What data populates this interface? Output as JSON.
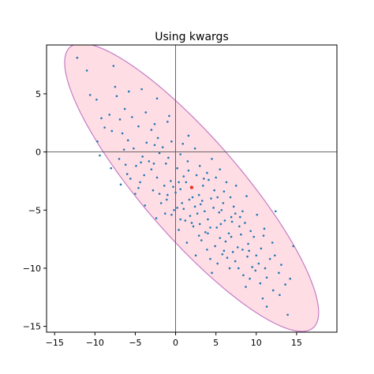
{
  "chart_data": {
    "type": "scatter",
    "title": "Using kwargs",
    "xlabel": "",
    "ylabel": "",
    "xlim": [
      -16,
      20
    ],
    "ylim": [
      -15.5,
      9.2
    ],
    "x_ticks": [
      -15,
      -10,
      -5,
      0,
      5,
      10,
      15
    ],
    "y_ticks": [
      5,
      0,
      -5,
      -10,
      -15
    ],
    "x_tick_labels": [
      "−15",
      "−10",
      "−5",
      "0",
      "5",
      "10",
      "15"
    ],
    "y_tick_labels": [
      "5",
      "0",
      "−5",
      "−10",
      "−15"
    ],
    "grid": false,
    "reference_lines": {
      "x": 0,
      "y": 0
    },
    "ellipse": {
      "center": [
        1.99,
        -3.05
      ],
      "semi_major": 19.4,
      "semi_minor": 5.0,
      "angle_deg": -37.2,
      "facecolor": "#ffdde4",
      "edgecolor": "#c57cc5"
    },
    "center_marker": {
      "x": 1.99,
      "y": -3.05,
      "color": "#e8352a"
    },
    "series": [
      {
        "points_color": "#1f77b4",
        "points": [
          [
            -12.2,
            8.1
          ],
          [
            -11.0,
            7.0
          ],
          [
            -7.7,
            7.4
          ],
          [
            -10.6,
            4.9
          ],
          [
            -9.8,
            4.5
          ],
          [
            -7.5,
            5.6
          ],
          [
            -7.3,
            4.8
          ],
          [
            -5.8,
            5.2
          ],
          [
            -4.2,
            5.4
          ],
          [
            -2.3,
            4.6
          ],
          [
            -6.3,
            3.7
          ],
          [
            -8.2,
            3.2
          ],
          [
            -3.7,
            3.4
          ],
          [
            -0.8,
            3.1
          ],
          [
            -8.8,
            2.1
          ],
          [
            -6.6,
            1.6
          ],
          [
            -4.6,
            2.2
          ],
          [
            -2.6,
            2.4
          ],
          [
            -1.0,
            2.6
          ],
          [
            -9.7,
            0.9
          ],
          [
            -5.9,
            1.0
          ],
          [
            -5.2,
            0.3
          ],
          [
            -3.6,
            0.8
          ],
          [
            -2.2,
            1.2
          ],
          [
            -0.5,
            0.9
          ],
          [
            -9.4,
            -0.3
          ],
          [
            -7.0,
            -0.6
          ],
          [
            -4.1,
            -0.4
          ],
          [
            -2.0,
            -0.1
          ],
          [
            0.6,
            -0.2
          ],
          [
            1.6,
            1.4
          ],
          [
            2.4,
            0.3
          ],
          [
            -8.0,
            -1.4
          ],
          [
            -6.0,
            -1.9
          ],
          [
            -3.0,
            -1.5
          ],
          [
            -1.2,
            -1.0
          ],
          [
            0.2,
            -1.4
          ],
          [
            1.5,
            -0.8
          ],
          [
            3.0,
            -1.2
          ],
          [
            4.5,
            -0.6
          ],
          [
            -6.8,
            -2.8
          ],
          [
            -4.4,
            -2.6
          ],
          [
            -2.3,
            -2.2
          ],
          [
            -0.6,
            -2.5
          ],
          [
            1.0,
            -2.1
          ],
          [
            2.6,
            -2.0
          ],
          [
            3.9,
            -1.8
          ],
          [
            5.5,
            -1.5
          ],
          [
            -5.0,
            -3.6
          ],
          [
            -2.8,
            -3.3
          ],
          [
            -1.0,
            -3.7
          ],
          [
            0.6,
            -3.2
          ],
          [
            2.0,
            -3.05
          ],
          [
            3.4,
            -2.9
          ],
          [
            4.8,
            -3.3
          ],
          [
            6.3,
            -2.6
          ],
          [
            7.5,
            -2.9
          ],
          [
            -3.8,
            -4.6
          ],
          [
            -1.8,
            -4.4
          ],
          [
            0.2,
            -4.8
          ],
          [
            1.7,
            -4.1
          ],
          [
            3.1,
            -4.5
          ],
          [
            4.4,
            -4.0
          ],
          [
            5.9,
            -4.4
          ],
          [
            7.2,
            -4.7
          ],
          [
            8.8,
            -3.8
          ],
          [
            -2.4,
            -5.7
          ],
          [
            -0.5,
            -5.4
          ],
          [
            1.2,
            -5.9
          ],
          [
            2.7,
            -5.3
          ],
          [
            4.0,
            -5.8
          ],
          [
            5.4,
            -5.2
          ],
          [
            6.9,
            -5.6
          ],
          [
            8.3,
            -5.1
          ],
          [
            10.1,
            -5.4
          ],
          [
            12.4,
            -5.1
          ],
          [
            0.4,
            -6.7
          ],
          [
            2.2,
            -6.4
          ],
          [
            3.7,
            -6.9
          ],
          [
            5.1,
            -6.5
          ],
          [
            6.6,
            -7.0
          ],
          [
            7.9,
            -6.4
          ],
          [
            9.3,
            -6.8
          ],
          [
            11.0,
            -6.6
          ],
          [
            1.4,
            -7.8
          ],
          [
            3.2,
            -7.6
          ],
          [
            4.9,
            -8.1
          ],
          [
            6.2,
            -7.7
          ],
          [
            7.7,
            -8.2
          ],
          [
            9.0,
            -7.9
          ],
          [
            10.6,
            -8.3
          ],
          [
            12.0,
            -7.8
          ],
          [
            2.5,
            -8.9
          ],
          [
            4.3,
            -9.2
          ],
          [
            5.8,
            -8.8
          ],
          [
            7.4,
            -9.4
          ],
          [
            8.9,
            -9.0
          ],
          [
            10.3,
            -9.6
          ],
          [
            11.7,
            -9.2
          ],
          [
            13.1,
            -9.7
          ],
          [
            14.6,
            -8.1
          ],
          [
            4.5,
            -10.4
          ],
          [
            6.7,
            -10.0
          ],
          [
            8.4,
            -10.6
          ],
          [
            9.9,
            -10.2
          ],
          [
            11.3,
            -10.8
          ],
          [
            12.8,
            -10.4
          ],
          [
            14.2,
            -10.9
          ],
          [
            8.7,
            -11.6
          ],
          [
            10.5,
            -11.3
          ],
          [
            12.1,
            -11.9
          ],
          [
            13.6,
            -11.4
          ],
          [
            10.8,
            -12.6
          ],
          [
            12.9,
            -12.3
          ],
          [
            11.3,
            -13.3
          ],
          [
            13.9,
            -14.0
          ],
          [
            -9.2,
            2.9
          ],
          [
            -7.9,
            1.8
          ],
          [
            -6.4,
            0.2
          ],
          [
            -4.9,
            -1.2
          ],
          [
            -3.3,
            -0.8
          ],
          [
            -1.6,
            0.4
          ],
          [
            0.9,
            0.7
          ],
          [
            -5.6,
            -2.3
          ],
          [
            -3.9,
            -2.0
          ],
          [
            -1.4,
            -2.9
          ],
          [
            0.0,
            -3.5
          ],
          [
            1.3,
            -2.6
          ],
          [
            2.9,
            -3.7
          ],
          [
            4.1,
            -2.4
          ],
          [
            5.2,
            -3.9
          ],
          [
            6.0,
            -3.4
          ],
          [
            -1.1,
            -4.1
          ],
          [
            0.8,
            -4.4
          ],
          [
            2.4,
            -4.7
          ],
          [
            3.6,
            -5.1
          ],
          [
            4.7,
            -4.8
          ],
          [
            6.1,
            -5.9
          ],
          [
            7.4,
            -5.3
          ],
          [
            8.6,
            -6.1
          ],
          [
            -0.2,
            -5.0
          ],
          [
            1.8,
            -5.5
          ],
          [
            3.0,
            -6.2
          ],
          [
            5.6,
            -6.2
          ],
          [
            7.0,
            -6.0
          ],
          [
            8.1,
            -7.1
          ],
          [
            9.7,
            -7.3
          ],
          [
            2.9,
            -7.2
          ],
          [
            4.0,
            -7.0
          ],
          [
            6.0,
            -8.5
          ],
          [
            7.1,
            -8.6
          ],
          [
            8.3,
            -8.4
          ],
          [
            10.0,
            -8.9
          ],
          [
            5.2,
            -9.6
          ],
          [
            6.4,
            -9.1
          ],
          [
            9.5,
            -9.9
          ],
          [
            11.1,
            -10.0
          ],
          [
            -6.9,
            2.8
          ],
          [
            -5.4,
            3.0
          ],
          [
            -3.0,
            1.9
          ],
          [
            -2.6,
            0.6
          ],
          [
            -0.9,
            -0.5
          ],
          [
            -4.3,
            -0.9
          ],
          [
            -6.2,
            -1.1
          ],
          [
            -2.7,
            -1.0
          ],
          [
            0.4,
            -2.6
          ],
          [
            1.6,
            -1.6
          ],
          [
            3.5,
            -2.3
          ],
          [
            -4.6,
            -3.1
          ],
          [
            -2.0,
            -3.6
          ],
          [
            -0.3,
            -3.0
          ],
          [
            2.1,
            -3.9
          ],
          [
            5.0,
            -2.2
          ],
          [
            1.0,
            -4.9
          ],
          [
            3.3,
            -4.2
          ],
          [
            6.8,
            -3.9
          ],
          [
            -1.3,
            -5.3
          ],
          [
            0.6,
            -5.8
          ],
          [
            2.0,
            -6.1
          ],
          [
            4.3,
            -6.5
          ],
          [
            5.7,
            -5.0
          ],
          [
            8.0,
            -5.6
          ],
          [
            3.9,
            -8.4
          ],
          [
            5.5,
            -7.4
          ],
          [
            6.9,
            -7.3
          ],
          [
            9.1,
            -8.5
          ],
          [
            10.9,
            -7.2
          ],
          [
            7.8,
            -10.0
          ],
          [
            9.2,
            -10.9
          ],
          [
            12.3,
            -8.9
          ]
        ]
      }
    ]
  }
}
